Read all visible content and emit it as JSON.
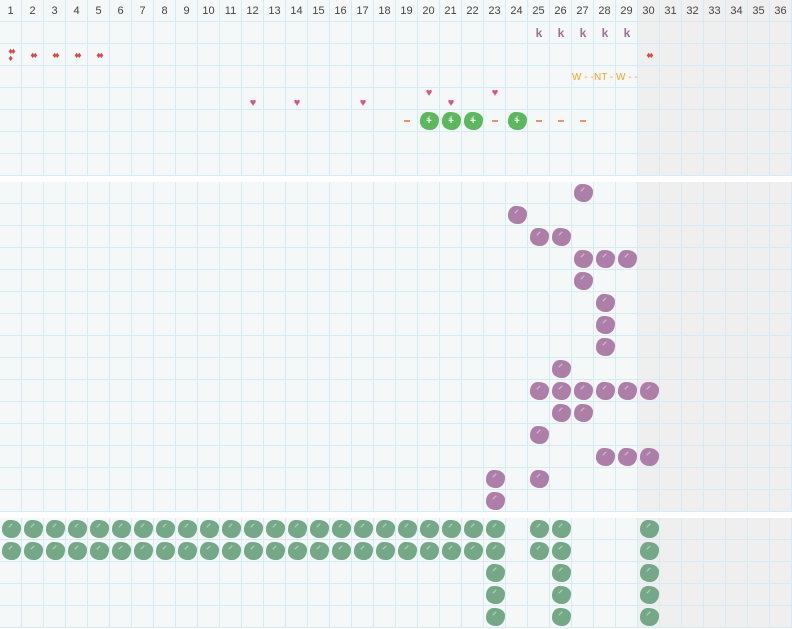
{
  "days": [
    "1",
    "2",
    "3",
    "4",
    "5",
    "6",
    "7",
    "8",
    "9",
    "10",
    "11",
    "12",
    "13",
    "14",
    "15",
    "16",
    "17",
    "18",
    "19",
    "20",
    "21",
    "22",
    "23",
    "24",
    "25",
    "26",
    "27",
    "28",
    "29",
    "30",
    "31",
    "32",
    "33",
    "34",
    "35",
    "36"
  ],
  "shaded_from_day": 30,
  "colors": {
    "grid_bg": "#f4f8f9",
    "grid_line": "#d6ebf3",
    "shaded": "#efefef",
    "purple": "#ad7fa8",
    "green_bright": "#5cb85c",
    "green_muted": "#74a886",
    "k": "#a0709a",
    "drop": "#d84a4a",
    "heart": "#e0527a",
    "dash": "#f0916a",
    "note": "#f5a623"
  },
  "top_band": {
    "rows": 7,
    "marks": [
      {
        "row": 0,
        "day": 25,
        "type": "k",
        "text": "k"
      },
      {
        "row": 0,
        "day": 26,
        "type": "k",
        "text": "k"
      },
      {
        "row": 0,
        "day": 27,
        "type": "k",
        "text": "k"
      },
      {
        "row": 0,
        "day": 28,
        "type": "k",
        "text": "k"
      },
      {
        "row": 0,
        "day": 29,
        "type": "k",
        "text": "k"
      },
      {
        "row": 1,
        "day": 1,
        "type": "drop",
        "icon": "blood-drop-3",
        "text": "♦♦\n♦"
      },
      {
        "row": 1,
        "day": 2,
        "type": "drop",
        "icon": "blood-drop-2",
        "text": "♦♦"
      },
      {
        "row": 1,
        "day": 3,
        "type": "drop",
        "icon": "blood-drop-2",
        "text": "♦♦"
      },
      {
        "row": 1,
        "day": 4,
        "type": "drop",
        "icon": "blood-drop-2",
        "text": "♦♦"
      },
      {
        "row": 1,
        "day": 5,
        "type": "drop",
        "icon": "blood-drop-2",
        "text": "♦♦"
      },
      {
        "row": 1,
        "day": 30,
        "type": "drop",
        "icon": "blood-drop-2",
        "text": "♦♦"
      },
      {
        "row": 2,
        "day": 27,
        "type": "note",
        "text": "W - -"
      },
      {
        "row": 2,
        "day": 28,
        "type": "note",
        "text": "NT -"
      },
      {
        "row": 2,
        "day": 29,
        "type": "note",
        "text": "W - -"
      },
      {
        "row": 3,
        "day": 12,
        "type": "heart",
        "pos": "low"
      },
      {
        "row": 3,
        "day": 14,
        "type": "heart",
        "pos": "low"
      },
      {
        "row": 3,
        "day": 17,
        "type": "heart",
        "pos": "low"
      },
      {
        "row": 3,
        "day": 20,
        "type": "heart",
        "pos": "high"
      },
      {
        "row": 3,
        "day": 21,
        "type": "heart",
        "pos": "low"
      },
      {
        "row": 3,
        "day": 23,
        "type": "heart",
        "pos": "high"
      },
      {
        "row": 4,
        "day": 19,
        "type": "dash"
      },
      {
        "row": 4,
        "day": 20,
        "type": "plus"
      },
      {
        "row": 4,
        "day": 21,
        "type": "plus"
      },
      {
        "row": 4,
        "day": 22,
        "type": "plus"
      },
      {
        "row": 4,
        "day": 23,
        "type": "dash"
      },
      {
        "row": 4,
        "day": 24,
        "type": "plus"
      },
      {
        "row": 4,
        "day": 25,
        "type": "dash"
      },
      {
        "row": 4,
        "day": 26,
        "type": "dash"
      },
      {
        "row": 4,
        "day": 27,
        "type": "dash"
      }
    ]
  },
  "middle_band": {
    "rows": 15,
    "color": "purple",
    "cells": [
      [
        0,
        27
      ],
      [
        1,
        24
      ],
      [
        2,
        25
      ],
      [
        2,
        26
      ],
      [
        3,
        27
      ],
      [
        3,
        28
      ],
      [
        3,
        29
      ],
      [
        4,
        27
      ],
      [
        5,
        28
      ],
      [
        6,
        28
      ],
      [
        7,
        28
      ],
      [
        8,
        26
      ],
      [
        9,
        25
      ],
      [
        9,
        26
      ],
      [
        9,
        27
      ],
      [
        9,
        28
      ],
      [
        9,
        29
      ],
      [
        9,
        30
      ],
      [
        10,
        26
      ],
      [
        10,
        27
      ],
      [
        11,
        25
      ],
      [
        12,
        28
      ],
      [
        12,
        29
      ],
      [
        12,
        30
      ],
      [
        13,
        23
      ],
      [
        13,
        25
      ],
      [
        14,
        23
      ]
    ]
  },
  "bottom_band": {
    "rows": 5,
    "color": "green_muted",
    "full_rows": [
      {
        "row": 0,
        "from": 1,
        "to": 23
      },
      {
        "row": 1,
        "from": 1,
        "to": 23
      }
    ],
    "cells": [
      [
        0,
        25
      ],
      [
        0,
        26
      ],
      [
        0,
        30
      ],
      [
        1,
        25
      ],
      [
        1,
        26
      ],
      [
        1,
        30
      ],
      [
        2,
        23
      ],
      [
        2,
        26
      ],
      [
        2,
        30
      ],
      [
        3,
        23
      ],
      [
        3,
        26
      ],
      [
        3,
        30
      ],
      [
        4,
        23
      ],
      [
        4,
        26
      ],
      [
        4,
        30
      ]
    ]
  }
}
